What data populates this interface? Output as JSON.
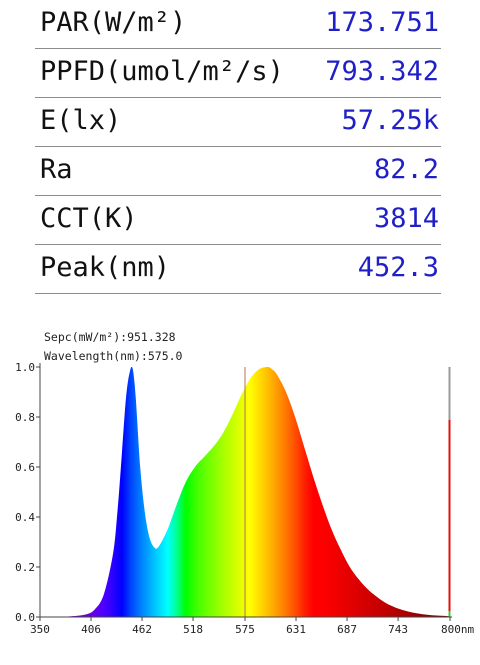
{
  "readings": [
    {
      "label": "PAR(W/m²)",
      "value": "173.751"
    },
    {
      "label": "PPFD(umol/m²/s)",
      "value": "793.342"
    },
    {
      "label": "E(lx)",
      "value": "57.25k"
    },
    {
      "label": "Ra",
      "value": "82.2"
    },
    {
      "label": "CCT(K)",
      "value": "3814"
    },
    {
      "label": "Peak(nm)",
      "value": "452.3"
    }
  ],
  "cursor": {
    "sepc_text": "Sepc(mW/m²):951.328",
    "wavelength_text": "Wavelength(nm):575.0",
    "wavelength": 575.0
  },
  "chart_data": {
    "type": "area",
    "x_unit": "nm",
    "xlim": [
      350,
      800
    ],
    "ylim": [
      0,
      1.0
    ],
    "x_ticks": [
      350,
      406,
      462,
      518,
      575,
      631,
      687,
      743,
      800
    ],
    "x_tick_labels": [
      "350",
      "406",
      "462",
      "518",
      "575",
      "631",
      "687",
      "743",
      "800nm"
    ],
    "y_ticks": [
      0.0,
      0.2,
      0.4,
      0.6,
      0.8,
      1.0
    ],
    "y_tick_labels": [
      "0.0",
      "0.2",
      "0.4",
      "0.6",
      "0.8",
      "1.0"
    ],
    "grid": false,
    "fill": "wavelength-colored spectrum",
    "x": [
      350,
      380,
      400,
      410,
      420,
      430,
      435,
      440,
      445,
      450,
      452,
      455,
      460,
      465,
      470,
      475,
      480,
      490,
      500,
      510,
      520,
      530,
      540,
      550,
      560,
      570,
      580,
      590,
      600,
      605,
      610,
      620,
      630,
      640,
      650,
      660,
      670,
      680,
      690,
      700,
      710,
      720,
      730,
      740,
      750,
      760,
      770,
      780,
      790,
      800
    ],
    "y": [
      0,
      0.002,
      0.01,
      0.03,
      0.09,
      0.25,
      0.42,
      0.66,
      0.9,
      1.0,
      0.99,
      0.88,
      0.6,
      0.42,
      0.32,
      0.28,
      0.28,
      0.35,
      0.45,
      0.54,
      0.6,
      0.64,
      0.68,
      0.73,
      0.8,
      0.88,
      0.95,
      0.99,
      1.0,
      0.99,
      0.97,
      0.9,
      0.8,
      0.68,
      0.56,
      0.45,
      0.35,
      0.27,
      0.2,
      0.15,
      0.11,
      0.08,
      0.055,
      0.038,
      0.026,
      0.017,
      0.011,
      0.007,
      0.005,
      0.003
    ]
  }
}
